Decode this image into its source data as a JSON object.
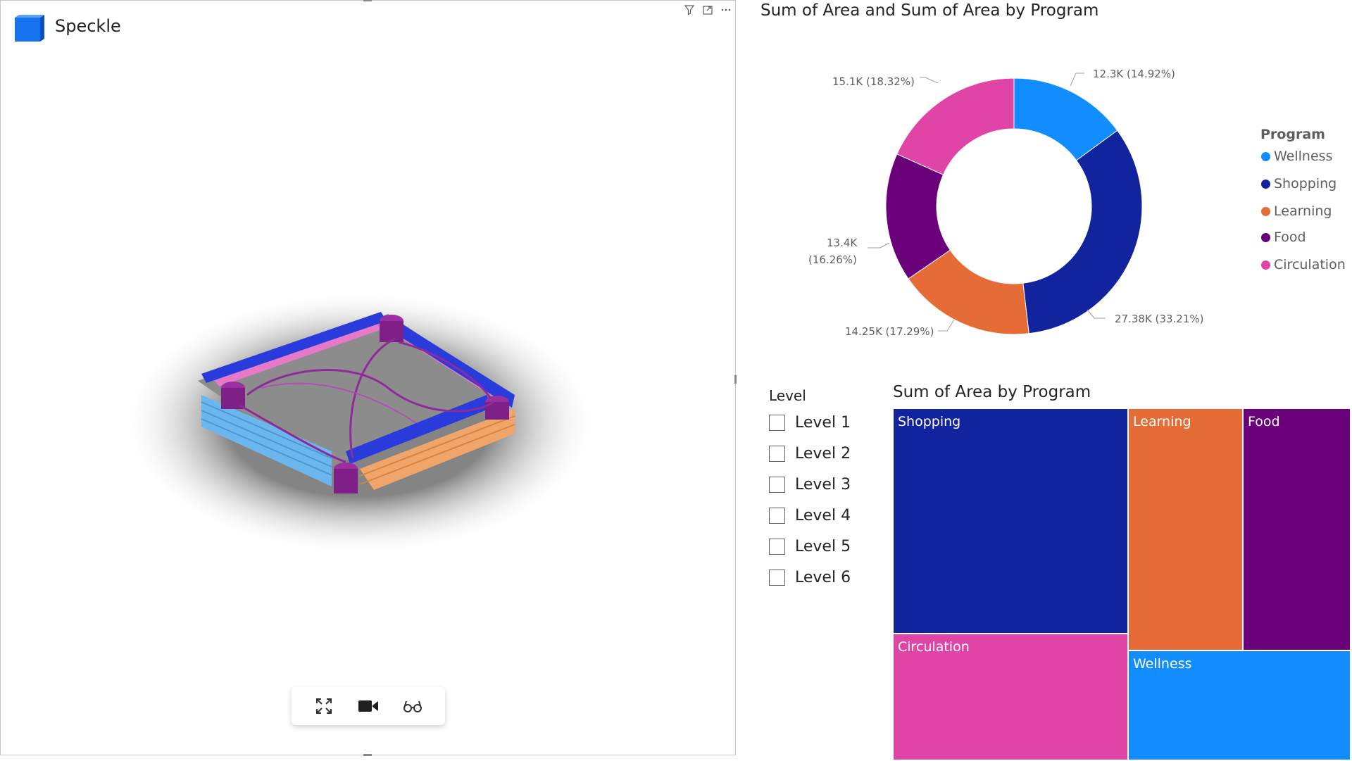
{
  "app": {
    "brand": "Speckle"
  },
  "viewer": {
    "toolbar": {
      "icons": [
        "expand-icon",
        "camera-icon",
        "glasses-icon"
      ]
    },
    "visual_header_icons": [
      "filter-icon",
      "focus-mode-icon",
      "more-options-icon"
    ]
  },
  "colors": {
    "Wellness": "#118DFF",
    "Shopping": "#12239E",
    "Learning": "#E66C37",
    "Food": "#6B007B",
    "Circulation": "#E044A7"
  },
  "donut": {
    "title": "Sum of Area and Sum of Area by Program",
    "legend_title": "Program",
    "legend": [
      "Wellness",
      "Shopping",
      "Learning",
      "Food",
      "Circulation"
    ],
    "labels": {
      "Wellness": "12.3K (14.92%)",
      "Shopping": "27.38K (33.21%)",
      "Learning": "14.25K (17.29%)",
      "Food_line1": "13.4K",
      "Food_line2": "(16.26%)",
      "Circulation": "15.1K (18.32%)"
    }
  },
  "slicer": {
    "title": "Level",
    "items": [
      "Level 1",
      "Level 2",
      "Level 3",
      "Level 4",
      "Level 5",
      "Level 6"
    ]
  },
  "treemap": {
    "title": "Sum of Area by Program",
    "tiles": [
      "Shopping",
      "Learning",
      "Food",
      "Circulation",
      "Wellness"
    ]
  },
  "chart_data": [
    {
      "type": "pie",
      "title": "Sum of Area and Sum of Area by Program",
      "categories": [
        "Wellness",
        "Shopping",
        "Learning",
        "Food",
        "Circulation"
      ],
      "values": [
        12300,
        27380,
        14250,
        13400,
        15100
      ],
      "percentages": [
        14.92,
        33.21,
        17.29,
        16.26,
        18.32
      ],
      "legend": "right"
    },
    {
      "type": "heatmap",
      "title": "Sum of Area by Program",
      "categories": [
        "Shopping",
        "Circulation",
        "Learning",
        "Food",
        "Wellness"
      ],
      "values": [
        27380,
        15100,
        14250,
        13400,
        12300
      ]
    }
  ]
}
